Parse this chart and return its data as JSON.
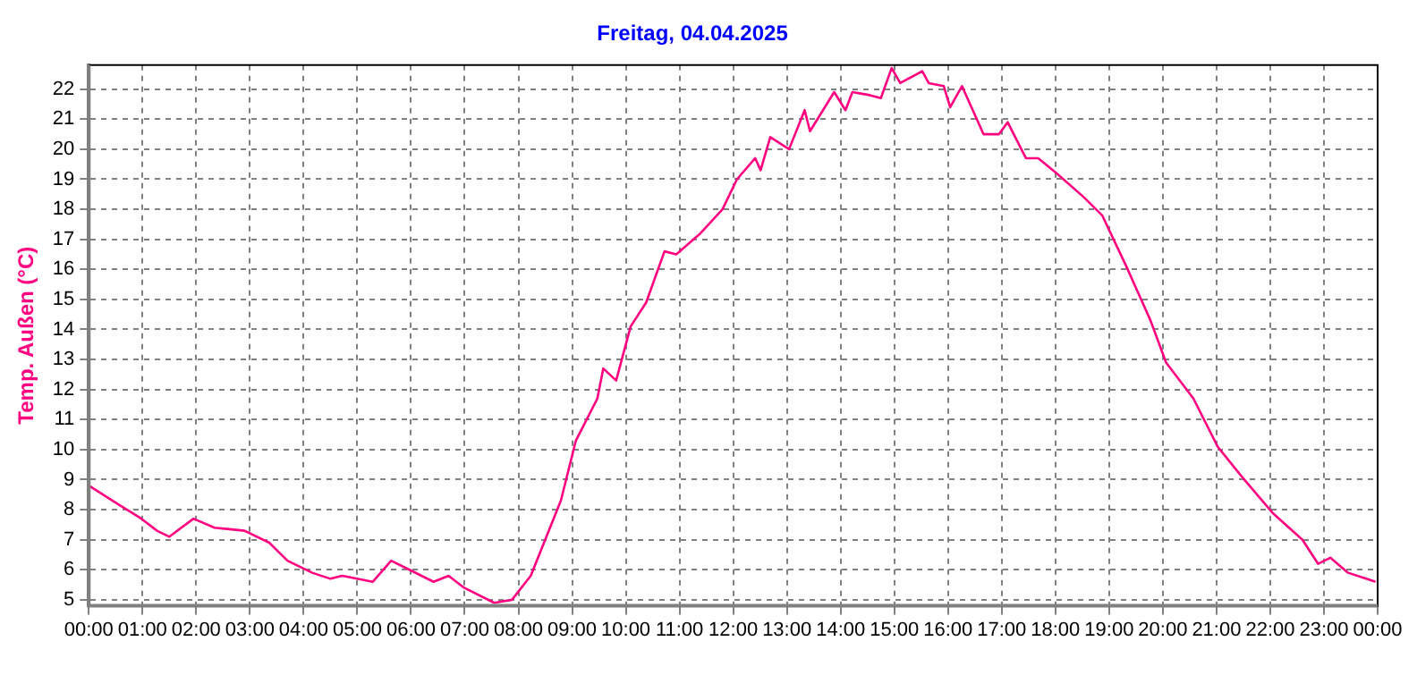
{
  "chart_data": {
    "type": "line",
    "title": "Freitag, 04.04.2025",
    "ylabel": "Temp. Außen (°C)",
    "x": [
      0,
      0.53,
      0.98,
      1.27,
      1.5,
      1.95,
      2.34,
      2.9,
      3.36,
      3.7,
      4.16,
      4.5,
      4.72,
      5.29,
      5.63,
      5.97,
      6.42,
      6.7,
      6.99,
      7.55,
      7.88,
      8.23,
      8.79,
      9.07,
      9.47,
      9.58,
      9.82,
      10.09,
      10.38,
      10.72,
      10.94,
      11.39,
      11.8,
      12.07,
      12.41,
      12.51,
      12.69,
      13.04,
      13.33,
      13.43,
      13.88,
      14.09,
      14.22,
      14.54,
      14.75,
      14.95,
      15.11,
      15.52,
      15.64,
      15.92,
      16.04,
      16.26,
      16.66,
      16.95,
      17.11,
      17.45,
      17.68,
      18.02,
      18.53,
      18.87,
      19.32,
      19.77,
      20.06,
      20.57,
      21.02,
      21.47,
      22.04,
      22.6,
      22.89,
      23.12,
      23.45,
      23.96
    ],
    "series": [
      {
        "color": "#ff0080",
        "values": [
          8.8,
          8.2,
          7.7,
          7.3,
          7.1,
          7.7,
          7.4,
          7.3,
          6.9,
          6.3,
          5.9,
          5.7,
          5.8,
          5.6,
          6.3,
          6.0,
          5.6,
          5.8,
          5.4,
          4.9,
          5.0,
          5.8,
          8.3,
          10.3,
          11.7,
          12.7,
          12.3,
          14.1,
          14.9,
          16.6,
          16.5,
          17.2,
          18.0,
          19.0,
          19.7,
          19.3,
          20.4,
          20.0,
          21.3,
          20.6,
          21.9,
          21.3,
          21.9,
          21.8,
          21.7,
          22.7,
          22.2,
          22.6,
          22.2,
          22.1,
          21.4,
          22.1,
          20.5,
          20.5,
          20.9,
          19.7,
          19.7,
          19.2,
          18.4,
          17.8,
          16.1,
          14.3,
          12.9,
          11.7,
          10.1,
          9.1,
          7.9,
          7.0,
          6.2,
          6.4,
          5.9,
          5.6
        ]
      }
    ],
    "xlim": [
      0,
      24
    ],
    "xticks": [
      {
        "value": 0,
        "label": "00:00"
      },
      {
        "value": 1,
        "label": "01:00"
      },
      {
        "value": 2,
        "label": "02:00"
      },
      {
        "value": 3,
        "label": "03:00"
      },
      {
        "value": 4,
        "label": "04:00"
      },
      {
        "value": 5,
        "label": "05:00"
      },
      {
        "value": 6,
        "label": "06:00"
      },
      {
        "value": 7,
        "label": "07:00"
      },
      {
        "value": 8,
        "label": "08:00"
      },
      {
        "value": 9,
        "label": "09:00"
      },
      {
        "value": 10,
        "label": "10:00"
      },
      {
        "value": 11,
        "label": "11:00"
      },
      {
        "value": 12,
        "label": "12:00"
      },
      {
        "value": 13,
        "label": "13:00"
      },
      {
        "value": 14,
        "label": "14:00"
      },
      {
        "value": 15,
        "label": "15:00"
      },
      {
        "value": 16,
        "label": "16:00"
      },
      {
        "value": 17,
        "label": "17:00"
      },
      {
        "value": 18,
        "label": "18:00"
      },
      {
        "value": 19,
        "label": "19:00"
      },
      {
        "value": 20,
        "label": "20:00"
      },
      {
        "value": 21,
        "label": "21:00"
      },
      {
        "value": 22,
        "label": "22:00"
      },
      {
        "value": 23,
        "label": "23:00"
      },
      {
        "value": 24,
        "label": "00:00"
      }
    ],
    "ylim": [
      4.8,
      22.8
    ],
    "yticks": [
      5,
      6,
      7,
      8,
      9,
      10,
      11,
      12,
      13,
      14,
      15,
      16,
      17,
      18,
      19,
      20,
      21,
      22
    ],
    "grid": true,
    "legend": false,
    "marker": "none",
    "line_style": "solid"
  }
}
